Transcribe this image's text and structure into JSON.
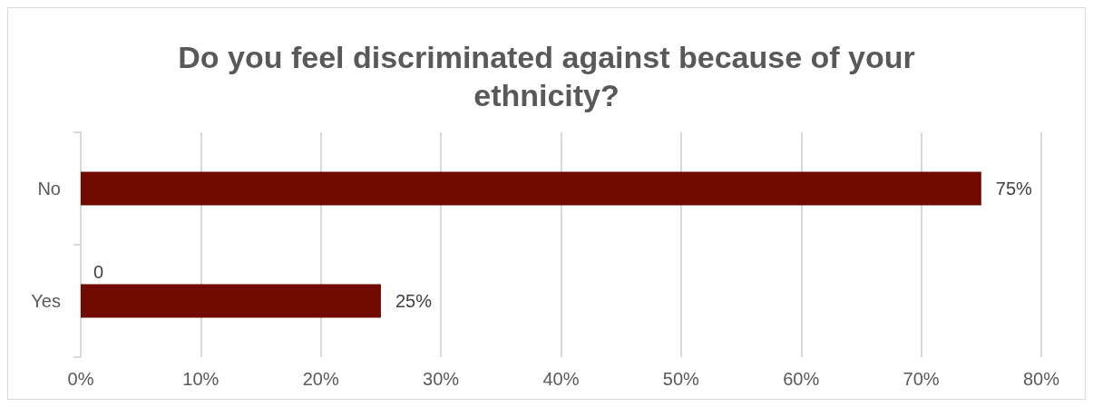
{
  "chart_data": {
    "type": "bar",
    "orientation": "horizontal",
    "title": "Do you feel discriminated against because of your\nethnicity?",
    "categories": [
      "No",
      "Yes"
    ],
    "values": [
      75,
      25
    ],
    "color": "#700a00",
    "value_labels": [
      "75%",
      "25%"
    ],
    "xlim": [
      0,
      80
    ],
    "xticks": [
      {
        "value": 0,
        "label": "0%"
      },
      {
        "value": 10,
        "label": "10%"
      },
      {
        "value": 20,
        "label": "20%"
      },
      {
        "value": 30,
        "label": "30%"
      },
      {
        "value": 40,
        "label": "40%"
      },
      {
        "value": 50,
        "label": "50%"
      },
      {
        "value": 60,
        "label": "60%"
      },
      {
        "value": 70,
        "label": "70%"
      },
      {
        "value": 80,
        "label": "80%"
      }
    ],
    "annotations": [
      {
        "text": "0",
        "x": 0,
        "y": "Yes"
      }
    ],
    "grid": "x"
  }
}
